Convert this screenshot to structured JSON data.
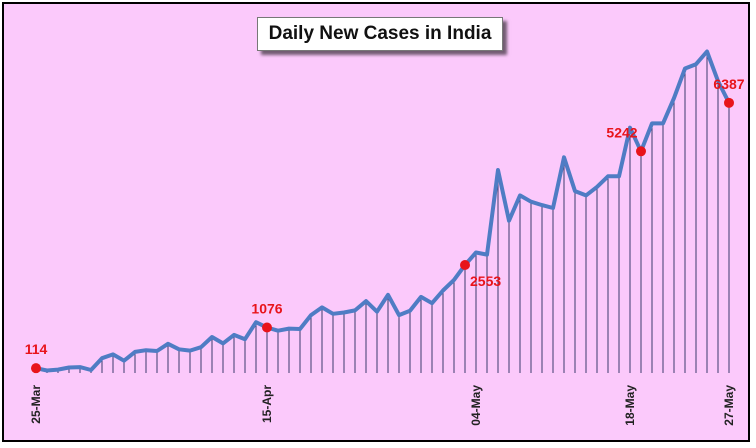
{
  "chart_data": {
    "type": "line",
    "title": "Daily New Cases in India",
    "xlabel": "",
    "ylabel": "",
    "start_date": "2020-03-25",
    "x_tick_labels": [
      {
        "label": "25-Mar",
        "index": 0
      },
      {
        "label": "15-Apr",
        "index": 21
      },
      {
        "label": "04-May",
        "index": 40
      },
      {
        "label": "18-May",
        "index": 54
      },
      {
        "label": "27-May",
        "index": 63
      }
    ],
    "ylim": [
      0,
      7400
    ],
    "grid": false,
    "legend": "none",
    "series": [
      {
        "name": "Daily New Cases",
        "color": "#4f7cc4",
        "marker_color": "#e8141b",
        "values": [
          114,
          60,
          80,
          130,
          140,
          70,
          350,
          440,
          290,
          500,
          540,
          520,
          690,
          560,
          530,
          610,
          850,
          700,
          900,
          800,
          1200,
          1076,
          1000,
          1050,
          1040,
          1370,
          1550,
          1400,
          1430,
          1480,
          1700,
          1450,
          1850,
          1370,
          1470,
          1800,
          1650,
          1950,
          2200,
          2553,
          2850,
          2800,
          4800,
          3600,
          4200,
          4050,
          3970,
          3900,
          5100,
          4300,
          4200,
          4400,
          4650,
          4650,
          5800,
          5242,
          5900,
          5900,
          6500,
          7200,
          7300,
          7600,
          6900,
          6387
        ]
      }
    ],
    "annotations": [
      {
        "index": 0,
        "text": "114",
        "position": "above"
      },
      {
        "index": 21,
        "text": "1076",
        "position": "above"
      },
      {
        "index": 39,
        "text": "2553",
        "position": "below-right"
      },
      {
        "index": 55,
        "text": "5242",
        "position": "above-left"
      },
      {
        "index": 63,
        "text": "6387",
        "position": "above"
      }
    ]
  }
}
